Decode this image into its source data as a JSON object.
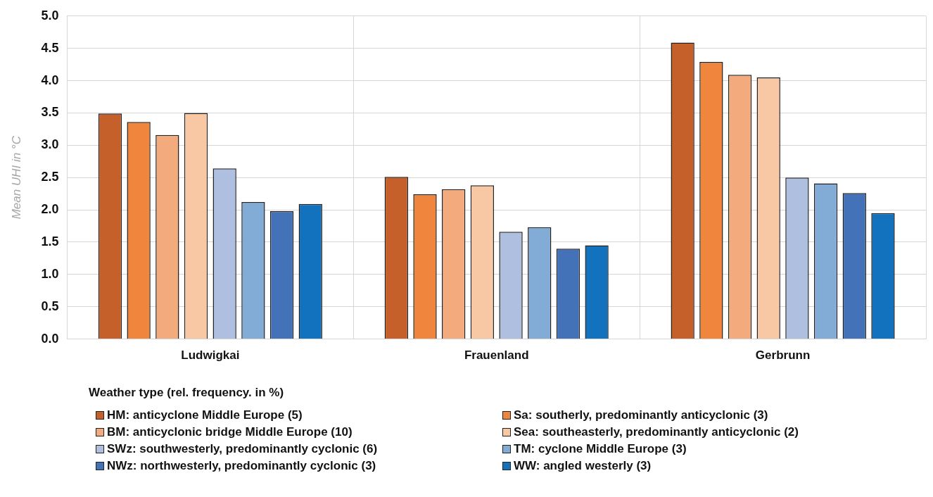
{
  "chart_data": {
    "type": "bar",
    "ylabel": "Mean UHI in °C",
    "categories": [
      "Ludwigkai",
      "Frauenland",
      "Gerbrunn"
    ],
    "series": [
      {
        "name": "HM: anticyclone Middle Europe (5)",
        "color": "#c5602a",
        "values": [
          3.49,
          2.51,
          4.59
        ]
      },
      {
        "name": "Sa: southerly, predominantly anticyclonic (3)",
        "color": "#f0853d",
        "values": [
          3.36,
          2.24,
          4.29
        ]
      },
      {
        "name": "BM: anticyclonic bridge Middle Europe (10)",
        "color": "#f3ab7d",
        "values": [
          3.16,
          2.32,
          4.09
        ]
      },
      {
        "name": "Sea: southeasterly, predominantly anticyclonic (2)",
        "color": "#f8c8a5",
        "values": [
          3.5,
          2.38,
          4.05
        ]
      },
      {
        "name": "SWz: southwesterly, predominantly cyclonic (6)",
        "color": "#aebfe0",
        "values": [
          2.64,
          1.66,
          2.5
        ]
      },
      {
        "name": "TM: cyclone Middle Europe (3)",
        "color": "#82abd6",
        "values": [
          2.12,
          1.73,
          2.41
        ]
      },
      {
        "name": "NWz: northwesterly, predominantly cyclonic (3)",
        "color": "#4472b8",
        "values": [
          1.98,
          1.4,
          2.26
        ]
      },
      {
        "name": "WW: angled westerly (3)",
        "color": "#1272be",
        "values": [
          2.09,
          1.45,
          1.95
        ]
      }
    ],
    "ylim": [
      0,
      5
    ],
    "yticks": [
      {
        "value": 0,
        "label": "0.0"
      },
      0.5,
      {
        "value": 1,
        "label": "1.0"
      },
      1.5,
      {
        "value": 2,
        "label": "2.0"
      },
      2.5,
      {
        "value": 3,
        "label": "3.0"
      },
      3.5,
      {
        "value": 4,
        "label": "4.0"
      },
      4.5,
      {
        "value": 5,
        "label": "5.0"
      }
    ],
    "grid": true,
    "legend": "bottom",
    "legend_title": "Weather type (rel. frequency. in %)"
  }
}
